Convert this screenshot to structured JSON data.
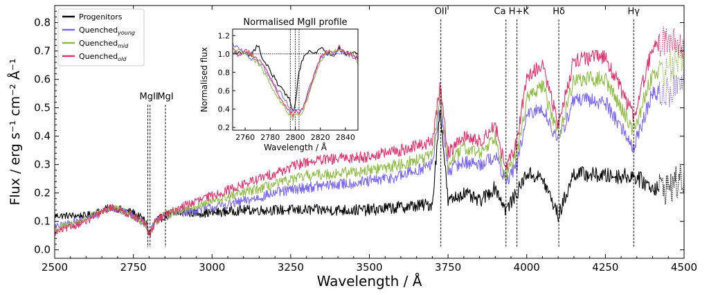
{
  "chart_data": {
    "type": "line",
    "xlabel": "Wavelength / Å",
    "ylabel": "Flux / erg s⁻¹ cm⁻² Å⁻¹",
    "xlim": [
      2500,
      4500
    ],
    "ylim": [
      -0.03,
      0.86
    ],
    "x_ticks": [
      2500,
      2750,
      3000,
      3250,
      3500,
      3750,
      4000,
      4250,
      4500
    ],
    "x_tick_labels": [
      "2500",
      "2750",
      "3000",
      "3250",
      "3500",
      "3750",
      "4000",
      "4250",
      "4500"
    ],
    "y_ticks": [
      0.0,
      0.1,
      0.2,
      0.3,
      0.4,
      0.5,
      0.6,
      0.7,
      0.8
    ],
    "y_tick_labels": [
      "0.0",
      "0.1",
      "0.2",
      "0.3",
      "0.4",
      "0.5",
      "0.6",
      "0.7",
      "0.8"
    ],
    "grid": false,
    "legend_position": "top-left",
    "dotted_beyond_wavelength": 4420,
    "series": [
      {
        "name": "Progenitors",
        "color": "#000000",
        "x": [
          2500,
          2600,
          2680,
          2750,
          2790,
          2800,
          2820,
          2850,
          2900,
          3000,
          3100,
          3200,
          3300,
          3400,
          3500,
          3600,
          3700,
          3725,
          3750,
          3800,
          3850,
          3900,
          3934,
          3969,
          4000,
          4050,
          4101,
          4150,
          4250,
          4340,
          4400,
          4450,
          4500
        ],
        "y": [
          0.12,
          0.12,
          0.15,
          0.13,
          0.1,
          0.06,
          0.1,
          0.12,
          0.13,
          0.13,
          0.14,
          0.14,
          0.14,
          0.14,
          0.14,
          0.15,
          0.16,
          0.5,
          0.17,
          0.2,
          0.17,
          0.22,
          0.14,
          0.2,
          0.27,
          0.25,
          0.12,
          0.27,
          0.26,
          0.26,
          0.22,
          0.22,
          0.25
        ]
      },
      {
        "name": "Quenched_young",
        "color": "#7b68ee",
        "x": [
          2500,
          2600,
          2680,
          2750,
          2790,
          2800,
          2820,
          2850,
          2900,
          3000,
          3100,
          3200,
          3300,
          3400,
          3500,
          3600,
          3700,
          3725,
          3750,
          3800,
          3850,
          3900,
          3934,
          3969,
          4000,
          4050,
          4101,
          4150,
          4250,
          4340,
          4400,
          4450,
          4500
        ],
        "y": [
          0.08,
          0.11,
          0.15,
          0.12,
          0.09,
          0.05,
          0.1,
          0.12,
          0.13,
          0.15,
          0.17,
          0.2,
          0.22,
          0.23,
          0.24,
          0.26,
          0.3,
          0.52,
          0.28,
          0.31,
          0.3,
          0.33,
          0.24,
          0.3,
          0.47,
          0.5,
          0.38,
          0.53,
          0.52,
          0.36,
          0.55,
          0.55,
          0.6
        ]
      },
      {
        "name": "Quenched_mid",
        "color": "#8fbc45",
        "x": [
          2500,
          2600,
          2680,
          2750,
          2790,
          2800,
          2820,
          2850,
          2900,
          3000,
          3100,
          3200,
          3300,
          3400,
          3500,
          3600,
          3700,
          3725,
          3750,
          3800,
          3850,
          3900,
          3934,
          3969,
          4000,
          4050,
          4101,
          4150,
          4250,
          4340,
          4400,
          4450,
          4500
        ],
        "y": [
          0.07,
          0.11,
          0.15,
          0.12,
          0.09,
          0.05,
          0.1,
          0.12,
          0.14,
          0.17,
          0.2,
          0.23,
          0.26,
          0.27,
          0.28,
          0.3,
          0.33,
          0.55,
          0.3,
          0.36,
          0.34,
          0.4,
          0.26,
          0.34,
          0.53,
          0.58,
          0.4,
          0.6,
          0.6,
          0.42,
          0.62,
          0.64,
          0.68
        ]
      },
      {
        "name": "Quenched_old",
        "color": "#e0336e",
        "x": [
          2500,
          2600,
          2680,
          2750,
          2790,
          2800,
          2820,
          2850,
          2900,
          3000,
          3100,
          3200,
          3300,
          3400,
          3500,
          3600,
          3700,
          3725,
          3750,
          3800,
          3850,
          3900,
          3934,
          3969,
          4000,
          4050,
          4101,
          4150,
          4250,
          4340,
          4400,
          4450,
          4500
        ],
        "y": [
          0.06,
          0.1,
          0.15,
          0.12,
          0.09,
          0.05,
          0.1,
          0.12,
          0.15,
          0.19,
          0.23,
          0.27,
          0.31,
          0.32,
          0.33,
          0.35,
          0.38,
          0.58,
          0.34,
          0.4,
          0.38,
          0.44,
          0.28,
          0.38,
          0.61,
          0.65,
          0.44,
          0.67,
          0.68,
          0.47,
          0.71,
          0.75,
          0.7
        ]
      }
    ],
    "legend": [
      {
        "label": "Progenitors",
        "sub": "",
        "color": "#000000"
      },
      {
        "label": "Quenched",
        "sub": "young",
        "color": "#7b68ee"
      },
      {
        "label": "Quenched",
        "sub": "mid",
        "color": "#8fbc45"
      },
      {
        "label": "Quenched",
        "sub": "old",
        "color": "#e0336e"
      }
    ],
    "lines": [
      {
        "label": "MgII",
        "x": [
          2796,
          2803
        ],
        "y_top": 0.53
      },
      {
        "label": "MgI",
        "x": [
          2852
        ],
        "y_top": 0.53
      },
      {
        "label": "OII",
        "x": [
          3727
        ],
        "y_top": 0.83
      },
      {
        "label": "Ca H+K",
        "x": [
          3934,
          3969
        ],
        "y_top": 0.83
      },
      {
        "label": "Hδ",
        "x": [
          4102
        ],
        "y_top": 0.83
      },
      {
        "label": "Hγ",
        "x": [
          4340
        ],
        "y_top": 0.83
      }
    ],
    "inset": {
      "title": "Normalised MgII profile",
      "xlabel": "Wavelength / Å",
      "ylabel": "Normalised flux",
      "xlim": [
        2750,
        2850
      ],
      "ylim": [
        0.17,
        1.27
      ],
      "x_ticks": [
        2760,
        2780,
        2800,
        2820,
        2840
      ],
      "x_tick_labels": [
        "2760",
        "2780",
        "2800",
        "2820",
        "2840"
      ],
      "y_ticks": [
        0.2,
        0.4,
        0.6,
        0.8,
        1.0,
        1.2
      ],
      "y_tick_labels": [
        "0.2",
        "0.4",
        "0.6",
        "0.8",
        "1.0",
        "1.2"
      ],
      "reference_y": 1.0,
      "marker_lines_x": [
        2796,
        2800,
        2803
      ],
      "series": [
        {
          "name": "Progenitors",
          "color": "#000000",
          "x": [
            2750,
            2755,
            2760,
            2765,
            2770,
            2775,
            2780,
            2785,
            2790,
            2795,
            2798,
            2800,
            2803,
            2806,
            2810,
            2815,
            2820,
            2825,
            2830,
            2835,
            2840,
            2845,
            2850
          ],
          "y": [
            1.0,
            1.02,
            1.0,
            0.99,
            1.1,
            0.92,
            0.82,
            0.7,
            0.6,
            0.52,
            0.38,
            0.45,
            0.82,
            0.95,
            1.02,
            1.0,
            1.07,
            1.01,
            0.98,
            1.05,
            0.99,
            1.02,
            1.0
          ]
        },
        {
          "name": "Quenched_young",
          "color": "#7b68ee",
          "x": [
            2750,
            2755,
            2760,
            2765,
            2770,
            2775,
            2780,
            2785,
            2790,
            2795,
            2798,
            2800,
            2803,
            2806,
            2810,
            2815,
            2820,
            2825,
            2830,
            2835,
            2840,
            2845,
            2850
          ],
          "y": [
            1.12,
            1.05,
            1.02,
            0.95,
            0.93,
            0.85,
            0.72,
            0.62,
            0.55,
            0.42,
            0.35,
            0.4,
            0.38,
            0.42,
            0.58,
            0.78,
            0.95,
            1.0,
            0.98,
            1.05,
            1.0,
            0.98,
            0.93
          ]
        },
        {
          "name": "Quenched_mid",
          "color": "#8fbc45",
          "x": [
            2750,
            2755,
            2760,
            2765,
            2770,
            2775,
            2780,
            2785,
            2790,
            2795,
            2798,
            2800,
            2803,
            2806,
            2810,
            2815,
            2820,
            2825,
            2830,
            2835,
            2840,
            2845,
            2850
          ],
          "y": [
            1.0,
            1.05,
            1.0,
            0.97,
            0.9,
            0.8,
            0.68,
            0.55,
            0.45,
            0.35,
            0.3,
            0.35,
            0.33,
            0.38,
            0.52,
            0.72,
            0.92,
            1.02,
            1.0,
            1.06,
            1.0,
            1.0,
            0.9
          ]
        },
        {
          "name": "Quenched_old",
          "color": "#e0336e",
          "x": [
            2750,
            2755,
            2760,
            2765,
            2770,
            2775,
            2780,
            2785,
            2790,
            2795,
            2798,
            2800,
            2803,
            2806,
            2810,
            2815,
            2820,
            2825,
            2830,
            2835,
            2840,
            2845,
            2850
          ],
          "y": [
            1.05,
            0.98,
            1.04,
            1.0,
            0.95,
            0.88,
            0.75,
            0.6,
            0.48,
            0.38,
            0.33,
            0.38,
            0.36,
            0.4,
            0.55,
            0.76,
            0.96,
            1.03,
            1.0,
            1.08,
            1.02,
            1.0,
            0.95
          ]
        }
      ]
    }
  }
}
